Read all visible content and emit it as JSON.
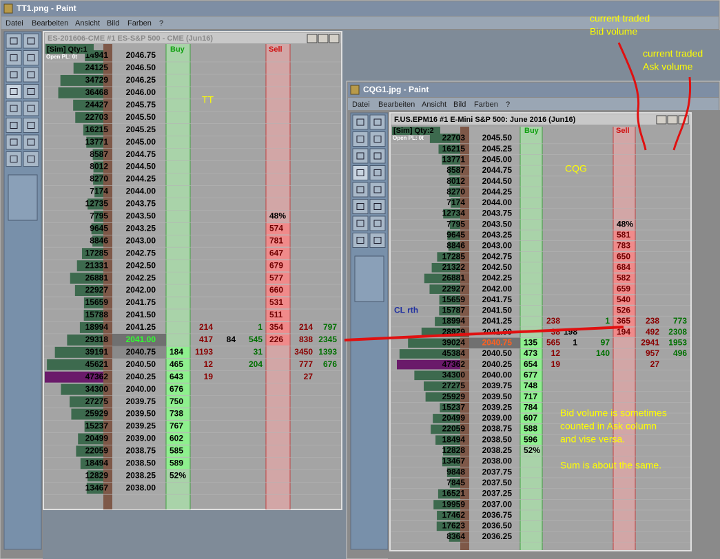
{
  "tt_window": {
    "title": "TT1.png - Paint",
    "menu": [
      "Datei",
      "Bearbeiten",
      "Ansicht",
      "Bild",
      "Farben",
      "?"
    ],
    "label": "TT",
    "ladder": {
      "title": "ES-201606-CME  #1  ES-S&P 500 - CME (Jun16)",
      "account": "[Sim]  Qty:1",
      "open_pl": "Open PL: 0t",
      "buy_header": "Buy",
      "sell_header": "Sell",
      "rows": [
        {
          "v": 14941,
          "p": "2046.75"
        },
        {
          "v": 24125,
          "p": "2046.50"
        },
        {
          "v": 34729,
          "p": "2046.25"
        },
        {
          "v": 36468,
          "p": "2046.00"
        },
        {
          "v": 24427,
          "p": "2045.75"
        },
        {
          "v": 22703,
          "p": "2045.50"
        },
        {
          "v": 16215,
          "p": "2045.25"
        },
        {
          "v": 13771,
          "p": "2045.00"
        },
        {
          "v": 8587,
          "p": "2044.75"
        },
        {
          "v": 8012,
          "p": "2044.50"
        },
        {
          "v": 8270,
          "p": "2044.25"
        },
        {
          "v": 7174,
          "p": "2044.00"
        },
        {
          "v": 12735,
          "p": "2043.75"
        },
        {
          "v": 7795,
          "p": "2043.50",
          "s": "48%"
        },
        {
          "v": 9645,
          "p": "2043.25",
          "s": "574"
        },
        {
          "v": 8846,
          "p": "2043.00",
          "s": "781"
        },
        {
          "v": 17285,
          "p": "2042.75",
          "s": "647"
        },
        {
          "v": 21331,
          "p": "2042.50",
          "s": "679"
        },
        {
          "v": 26881,
          "p": "2042.25",
          "s": "577"
        },
        {
          "v": 22927,
          "p": "2042.00",
          "s": "660"
        },
        {
          "v": 15659,
          "p": "2041.75",
          "s": "531"
        },
        {
          "v": 15788,
          "p": "2041.50",
          "s": "511"
        },
        {
          "v": 18994,
          "p": "2041.25",
          "c1": "214",
          "c3": "1",
          "s": "354",
          "c4": "214",
          "c5": "797"
        },
        {
          "v": 29318,
          "p": "2041.00",
          "c1": "417",
          "c2": "84",
          "c3": "545",
          "s": "226",
          "c4": "838",
          "c5": "2345"
        },
        {
          "v": 39191,
          "p": "2040.75",
          "b": "184",
          "c1": "1193",
          "c3": "31",
          "c4": "3450",
          "c5": "1393"
        },
        {
          "v": 45621,
          "p": "2040.50",
          "b": "465",
          "c1": "12",
          "c3": "204",
          "c4": "777",
          "c5": "676"
        },
        {
          "v": 47362,
          "p": "2040.25",
          "b": "643",
          "c1": "19",
          "c4": "27"
        },
        {
          "v": 34300,
          "p": "2040.00",
          "b": "676"
        },
        {
          "v": 27275,
          "p": "2039.75",
          "b": "750"
        },
        {
          "v": 25929,
          "p": "2039.50",
          "b": "738"
        },
        {
          "v": 15237,
          "p": "2039.25",
          "b": "767"
        },
        {
          "v": 20499,
          "p": "2039.00",
          "b": "602"
        },
        {
          "v": 22059,
          "p": "2038.75",
          "b": "585"
        },
        {
          "v": 18494,
          "p": "2038.50",
          "b": "589"
        },
        {
          "v": 12829,
          "p": "2038.25",
          "b": "52%"
        },
        {
          "v": 13467,
          "p": "2038.00"
        }
      ]
    }
  },
  "cqg_window": {
    "title": "CQG1.jpg - Paint",
    "menu": [
      "Datei",
      "Bearbeiten",
      "Ansicht",
      "Bild",
      "Farben",
      "?"
    ],
    "label": "CQG",
    "ladder": {
      "title": "F.US.EPM16  #1  E-Mini S&P 500: June 2016 (Jun16)",
      "account": "[Sim]  Qty:2",
      "open_pl": "Open PL: 0t",
      "buy_header": "Buy",
      "sell_header": "Sell",
      "side_label": "CL rth",
      "rows": [
        {
          "v": 22703,
          "p": "2045.50"
        },
        {
          "v": 16215,
          "p": "2045.25"
        },
        {
          "v": 13771,
          "p": "2045.00"
        },
        {
          "v": 8587,
          "p": "2044.75"
        },
        {
          "v": 8012,
          "p": "2044.50"
        },
        {
          "v": 8270,
          "p": "2044.25"
        },
        {
          "v": 7174,
          "p": "2044.00"
        },
        {
          "v": 12734,
          "p": "2043.75"
        },
        {
          "v": 7795,
          "p": "2043.50",
          "s": "48%"
        },
        {
          "v": 9645,
          "p": "2043.25",
          "s": "581"
        },
        {
          "v": 8846,
          "p": "2043.00",
          "s": "783"
        },
        {
          "v": 17285,
          "p": "2042.75",
          "s": "650"
        },
        {
          "v": 21322,
          "p": "2042.50",
          "s": "684"
        },
        {
          "v": 26881,
          "p": "2042.25",
          "s": "582"
        },
        {
          "v": 22927,
          "p": "2042.00",
          "s": "659"
        },
        {
          "v": 15659,
          "p": "2041.75",
          "s": "540"
        },
        {
          "v": 15787,
          "p": "2041.50",
          "s": "526"
        },
        {
          "v": 18994,
          "p": "2041.25",
          "c1": "238",
          "c3": "1",
          "s": "365",
          "c4": "238",
          "c5": "773"
        },
        {
          "v": 28929,
          "p": "2041.00",
          "c1": "38",
          "c2": "198",
          "s": "194",
          "c4": "492",
          "c5": "2308"
        },
        {
          "v": 39024,
          "p": "2040.75",
          "b": "135",
          "c1": "565",
          "c2": "1",
          "c3": "97",
          "c4": "2941",
          "c5": "1953"
        },
        {
          "v": 45384,
          "p": "2040.50",
          "b": "473",
          "c1": "12",
          "c3": "140",
          "c4": "957",
          "c5": "496"
        },
        {
          "v": 47362,
          "p": "2040.25",
          "b": "654",
          "c1": "19",
          "c4": "27"
        },
        {
          "v": 34300,
          "p": "2040.00",
          "b": "677"
        },
        {
          "v": 27275,
          "p": "2039.75",
          "b": "748"
        },
        {
          "v": 25929,
          "p": "2039.50",
          "b": "717"
        },
        {
          "v": 15237,
          "p": "2039.25",
          "b": "784"
        },
        {
          "v": 20499,
          "p": "2039.00",
          "b": "607"
        },
        {
          "v": 22059,
          "p": "2038.75",
          "b": "588"
        },
        {
          "v": 18494,
          "p": "2038.50",
          "b": "596"
        },
        {
          "v": 12828,
          "p": "2038.25",
          "b": "52%"
        },
        {
          "v": 13467,
          "p": "2038.00"
        },
        {
          "v": 9848,
          "p": "2037.75"
        },
        {
          "v": 7845,
          "p": "2037.50"
        },
        {
          "v": 16521,
          "p": "2037.25"
        },
        {
          "v": 19959,
          "p": "2037.00"
        },
        {
          "v": 17462,
          "p": "2036.75"
        },
        {
          "v": 17623,
          "p": "2036.50"
        },
        {
          "v": 8364,
          "p": "2036.25"
        }
      ]
    }
  },
  "annotations": {
    "bid_note": [
      "current traded",
      "Bid volume"
    ],
    "ask_note": [
      "current traded",
      "Ask volume"
    ],
    "note": [
      "Bid volume is sometimes",
      "counted in Ask column",
      "and vise versa."
    ],
    "sum_note": "Sum is about the same."
  }
}
